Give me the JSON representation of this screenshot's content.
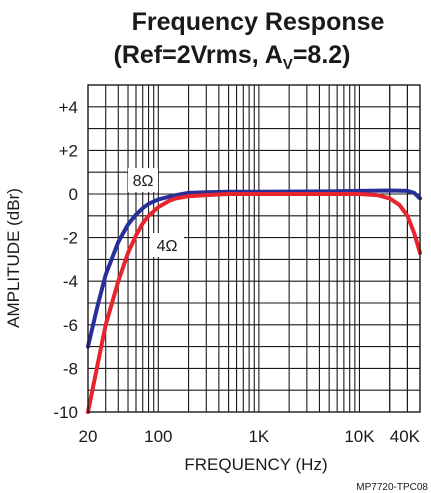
{
  "chart_data": {
    "type": "line",
    "title_line1": "Frequency Response",
    "title_line2_main": "(Ref=2Vrms, A",
    "title_line2_sub": "V",
    "title_line2_end": "=8.2)",
    "xlabel": "FREQUENCY (Hz)",
    "ylabel": "AMPLITUDE (dBr)",
    "x_scale": "log",
    "xlim": [
      20,
      40000
    ],
    "ylim": [
      -10,
      5
    ],
    "grid": true,
    "x_ticks": [
      {
        "value": 20,
        "label": "20"
      },
      {
        "value": 100,
        "label": "100"
      },
      {
        "value": 1000,
        "label": "1K"
      },
      {
        "value": 10000,
        "label": "10K"
      },
      {
        "value": 40000,
        "label": "40K"
      }
    ],
    "y_ticks": [
      {
        "value": 4,
        "label": "+4"
      },
      {
        "value": 2,
        "label": "+2"
      },
      {
        "value": 0,
        "label": "0"
      },
      {
        "value": -2,
        "label": "-2"
      },
      {
        "value": -4,
        "label": "-4"
      },
      {
        "value": -6,
        "label": "-6"
      },
      {
        "value": -8,
        "label": "-8"
      },
      {
        "value": -10,
        "label": "-10"
      }
    ],
    "series": [
      {
        "name": "8Ω",
        "color": "#27309a",
        "points": [
          [
            20,
            -7.0
          ],
          [
            25,
            -5.1
          ],
          [
            30,
            -3.7
          ],
          [
            40,
            -2.2
          ],
          [
            50,
            -1.4
          ],
          [
            60,
            -0.95
          ],
          [
            70,
            -0.65
          ],
          [
            80,
            -0.45
          ],
          [
            100,
            -0.25
          ],
          [
            150,
            -0.05
          ],
          [
            200,
            0.05
          ],
          [
            300,
            0.08
          ],
          [
            500,
            0.1
          ],
          [
            1000,
            0.1
          ],
          [
            5000,
            0.12
          ],
          [
            10000,
            0.14
          ],
          [
            20000,
            0.16
          ],
          [
            30000,
            0.14
          ],
          [
            35000,
            0.05
          ],
          [
            40000,
            -0.2
          ]
        ]
      },
      {
        "name": "4Ω",
        "color": "#e8242c",
        "points": [
          [
            20,
            -10.0
          ],
          [
            25,
            -7.8
          ],
          [
            30,
            -6.0
          ],
          [
            40,
            -4.0
          ],
          [
            50,
            -2.7
          ],
          [
            60,
            -1.9
          ],
          [
            70,
            -1.35
          ],
          [
            80,
            -1.0
          ],
          [
            100,
            -0.6
          ],
          [
            130,
            -0.3
          ],
          [
            150,
            -0.2
          ],
          [
            200,
            -0.1
          ],
          [
            300,
            -0.05
          ],
          [
            500,
            0.0
          ],
          [
            1000,
            0.0
          ],
          [
            2000,
            0.0
          ],
          [
            5000,
            0.0
          ],
          [
            10000,
            0.0
          ],
          [
            15000,
            -0.05
          ],
          [
            20000,
            -0.2
          ],
          [
            25000,
            -0.5
          ],
          [
            30000,
            -1.0
          ],
          [
            35000,
            -1.8
          ],
          [
            40000,
            -2.7
          ]
        ]
      }
    ]
  },
  "footer_code": "MP7720-TPC08"
}
